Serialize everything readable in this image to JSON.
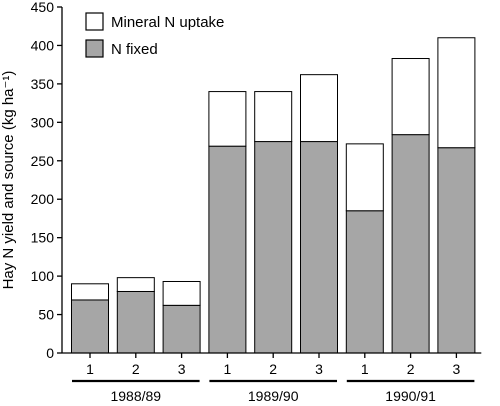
{
  "chart_data": {
    "type": "bar",
    "stacked": true,
    "ylabel": "Hay N yield and source (kg ha⁻¹)",
    "ylim": [
      0,
      450
    ],
    "yticks": [
      0,
      50,
      100,
      150,
      200,
      250,
      300,
      350,
      400,
      450
    ],
    "categories": [
      "1",
      "2",
      "3",
      "1",
      "2",
      "3",
      "1",
      "2",
      "3"
    ],
    "groups": [
      {
        "label": "1988/89",
        "categories": [
          "1",
          "2",
          "3"
        ]
      },
      {
        "label": "1989/90",
        "categories": [
          "1",
          "2",
          "3"
        ]
      },
      {
        "label": "1990/91",
        "categories": [
          "1",
          "2",
          "3"
        ]
      }
    ],
    "series": [
      {
        "name": "N fixed",
        "color": "#a6a6a6",
        "values": [
          69,
          80,
          62,
          269,
          275,
          275,
          185,
          284,
          267
        ]
      },
      {
        "name": "Mineral N uptake",
        "color": "#ffffff",
        "values": [
          21,
          18,
          31,
          71,
          65,
          87,
          87,
          99,
          143
        ]
      }
    ],
    "legend": {
      "position": "top-left",
      "entries": [
        "Mineral N uptake",
        "N fixed"
      ]
    },
    "grid": false
  }
}
